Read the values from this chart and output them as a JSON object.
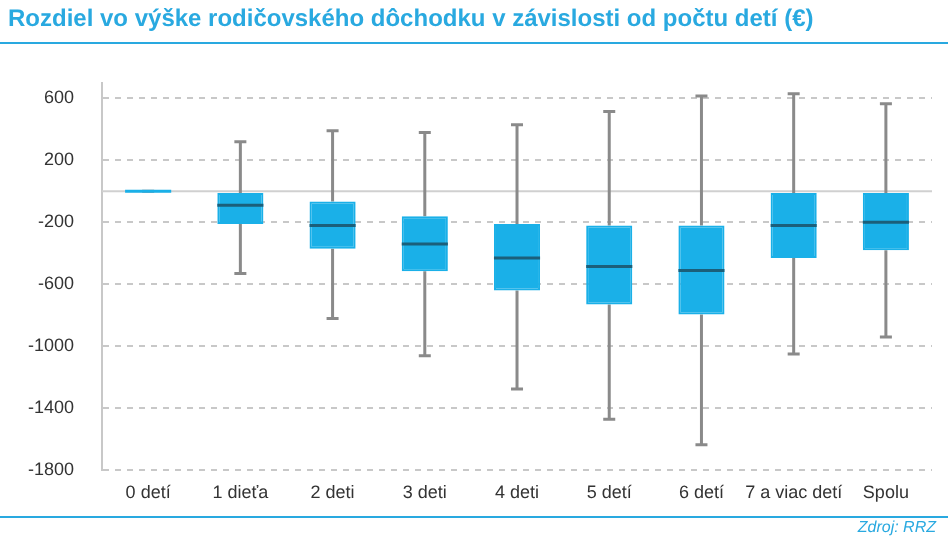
{
  "chart_data": {
    "type": "box",
    "title": "Rozdiel vo výške rodičovského dôchodku v závislosti od počtu detí (€)",
    "categories": [
      "0 detí",
      "1 dieťa",
      "2 deti",
      "3 deti",
      "4 deti",
      "5 detí",
      "6 detí",
      "7 a viac detí",
      "Spolu"
    ],
    "color": "#1ab0e8",
    "boxes": [
      {
        "low": 0,
        "q1": 0,
        "median": 0,
        "q3": 0,
        "high": 0
      },
      {
        "low": -530,
        "q1": -210,
        "median": -90,
        "q3": -10,
        "high": 320
      },
      {
        "low": -820,
        "q1": -370,
        "median": -220,
        "q3": -65,
        "high": 390
      },
      {
        "low": -1060,
        "q1": -515,
        "median": -340,
        "q3": -160,
        "high": 380
      },
      {
        "low": -1275,
        "q1": -640,
        "median": -430,
        "q3": -210,
        "high": 430
      },
      {
        "low": -1470,
        "q1": -730,
        "median": -485,
        "q3": -220,
        "high": 515
      },
      {
        "low": -1635,
        "q1": -795,
        "median": -510,
        "q3": -220,
        "high": 615
      },
      {
        "low": -1050,
        "q1": -430,
        "median": -220,
        "q3": -10,
        "high": 630
      },
      {
        "low": -940,
        "q1": -380,
        "median": -200,
        "q3": -10,
        "high": 565
      }
    ],
    "ylim": [
      -1800,
      700
    ],
    "yticks": [
      600,
      200,
      -200,
      -600,
      -1000,
      -1400,
      -1800
    ],
    "grid": "y",
    "ref_lines": [
      {
        "axis": "y",
        "value": 0,
        "color": "#d0d0d0"
      }
    ],
    "annotations": [
      "Zdroj: RRZ"
    ]
  }
}
